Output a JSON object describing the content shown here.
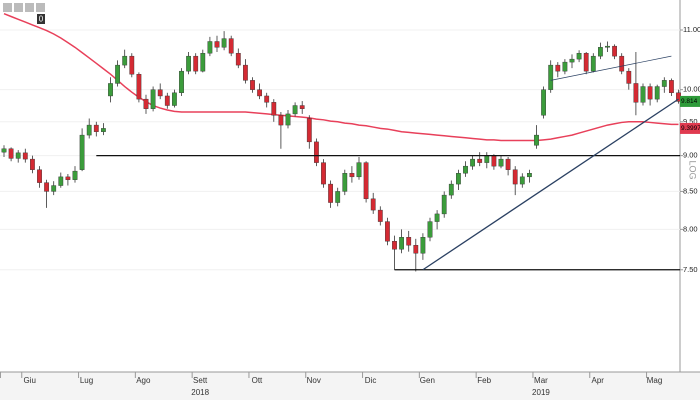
{
  "toolbar": {
    "badge": "0"
  },
  "chart_data": {
    "type": "candlestick",
    "log_scale": true,
    "scale_label": "LOG",
    "ylim": [
      6.37,
      11.54
    ],
    "yticks": [
      {
        "value": 7.5,
        "label": "7.50"
      },
      {
        "value": 8,
        "label": "8.00"
      },
      {
        "value": 8.5,
        "label": "8.50"
      },
      {
        "value": 9,
        "label": "9.00"
      },
      {
        "value": 9.5,
        "label": "9.50"
      },
      {
        "value": 10,
        "label": "10.00"
      },
      {
        "value": 11,
        "label": "11.00"
      }
    ],
    "up_color": "#3b9c3b",
    "down_color": "#d42a33",
    "ma_color": "#e8405a",
    "trend_color": "#2b4163",
    "months": [
      {
        "label": null,
        "year": null,
        "ohlc": [
          [
            9.05,
            9.15,
            8.98,
            9.1
          ],
          [
            9.1,
            9.12,
            8.92,
            8.96
          ],
          [
            8.96,
            9.08,
            8.9,
            9.04
          ]
        ]
      },
      {
        "label": "Giu",
        "year": null,
        "ohlc": [
          [
            9.04,
            9.1,
            8.9,
            8.95
          ],
          [
            8.95,
            9.0,
            8.75,
            8.8
          ],
          [
            8.8,
            8.85,
            8.55,
            8.62
          ],
          [
            8.62,
            8.66,
            8.28,
            8.5
          ],
          [
            8.5,
            8.64,
            8.45,
            8.58
          ],
          [
            8.58,
            8.76,
            8.55,
            8.7
          ],
          [
            8.7,
            8.74,
            8.58,
            8.66
          ],
          [
            8.66,
            8.85,
            8.62,
            8.78
          ]
        ]
      },
      {
        "label": "Lug",
        "year": null,
        "ohlc": [
          [
            8.8,
            9.4,
            8.78,
            9.3
          ],
          [
            9.3,
            9.55,
            9.25,
            9.45
          ],
          [
            9.45,
            9.5,
            9.28,
            9.35
          ],
          [
            9.35,
            9.48,
            9.3,
            9.4
          ],
          [
            9.9,
            10.2,
            9.8,
            10.1
          ],
          [
            10.1,
            10.48,
            10.05,
            10.4
          ],
          [
            10.4,
            10.66,
            10.35,
            10.55
          ],
          [
            10.55,
            10.6,
            10.2,
            10.25
          ]
        ]
      },
      {
        "label": "Ago",
        "year": null,
        "ohlc": [
          [
            10.25,
            10.28,
            9.8,
            9.85
          ],
          [
            9.85,
            9.92,
            9.62,
            9.7
          ],
          [
            9.7,
            10.05,
            9.66,
            10.0
          ],
          [
            10.0,
            10.1,
            9.85,
            9.9
          ],
          [
            9.9,
            9.95,
            9.7,
            9.75
          ],
          [
            9.75,
            10.0,
            9.72,
            9.95
          ],
          [
            9.95,
            10.35,
            9.9,
            10.3
          ],
          [
            10.3,
            10.62,
            10.25,
            10.55
          ]
        ]
      },
      {
        "label": "Sett",
        "year": "2018",
        "ohlc": [
          [
            10.55,
            10.6,
            10.25,
            10.3
          ],
          [
            10.3,
            10.66,
            10.28,
            10.6
          ],
          [
            10.6,
            10.88,
            10.55,
            10.8
          ],
          [
            10.8,
            10.9,
            10.62,
            10.7
          ],
          [
            10.7,
            10.98,
            10.65,
            10.85
          ],
          [
            10.85,
            10.9,
            10.55,
            10.6
          ],
          [
            10.6,
            10.68,
            10.35,
            10.4
          ],
          [
            10.4,
            10.5,
            10.1,
            10.15
          ]
        ]
      },
      {
        "label": "Ott",
        "year": null,
        "ohlc": [
          [
            10.15,
            10.2,
            9.95,
            10.0
          ],
          [
            10.0,
            10.1,
            9.85,
            9.9
          ],
          [
            9.9,
            9.95,
            9.72,
            9.8
          ],
          [
            9.8,
            9.85,
            9.5,
            9.6
          ],
          [
            9.6,
            9.65,
            9.1,
            9.45
          ],
          [
            9.45,
            9.68,
            9.4,
            9.62
          ],
          [
            9.62,
            9.8,
            9.58,
            9.75
          ],
          [
            9.75,
            9.82,
            9.62,
            9.7
          ]
        ]
      },
      {
        "label": "Nov",
        "year": null,
        "ohlc": [
          [
            9.55,
            9.6,
            9.1,
            9.2
          ],
          [
            9.2,
            9.25,
            8.85,
            8.9
          ],
          [
            8.9,
            8.95,
            8.55,
            8.6
          ],
          [
            8.6,
            8.65,
            8.28,
            8.35
          ],
          [
            8.35,
            8.55,
            8.3,
            8.5
          ],
          [
            8.5,
            8.8,
            8.45,
            8.75
          ],
          [
            8.75,
            8.85,
            8.62,
            8.7
          ],
          [
            8.7,
            8.98,
            8.66,
            8.9
          ]
        ]
      },
      {
        "label": "Dic",
        "year": null,
        "ohlc": [
          [
            8.9,
            8.92,
            8.35,
            8.4
          ],
          [
            8.4,
            8.48,
            8.2,
            8.25
          ],
          [
            8.25,
            8.3,
            8.05,
            8.1
          ],
          [
            8.1,
            8.15,
            7.8,
            7.85
          ],
          [
            7.85,
            7.92,
            7.5,
            7.75
          ],
          [
            7.75,
            8.0,
            7.7,
            7.9
          ],
          [
            7.9,
            7.98,
            7.72,
            7.8
          ],
          [
            7.8,
            7.88,
            7.48,
            7.7
          ]
        ]
      },
      {
        "label": "Gen",
        "year": null,
        "ohlc": [
          [
            7.7,
            7.95,
            7.62,
            7.9
          ],
          [
            7.9,
            8.15,
            7.85,
            8.1
          ],
          [
            8.1,
            8.25,
            8.0,
            8.2
          ],
          [
            8.2,
            8.5,
            8.15,
            8.45
          ],
          [
            8.45,
            8.65,
            8.4,
            8.6
          ],
          [
            8.6,
            8.8,
            8.52,
            8.75
          ],
          [
            8.75,
            8.92,
            8.7,
            8.85
          ],
          [
            8.85,
            9.0,
            8.8,
            8.95
          ]
        ]
      },
      {
        "label": "Feb",
        "year": null,
        "ohlc": [
          [
            8.95,
            9.05,
            8.85,
            8.9
          ],
          [
            8.9,
            9.05,
            8.82,
            9.0
          ],
          [
            9.0,
            9.02,
            8.8,
            8.85
          ],
          [
            8.85,
            9.0,
            8.82,
            8.95
          ],
          [
            8.95,
            8.98,
            8.72,
            8.8
          ],
          [
            8.8,
            8.85,
            8.45,
            8.6
          ],
          [
            8.6,
            8.75,
            8.55,
            8.7
          ],
          [
            8.7,
            8.8,
            8.62,
            8.75
          ]
        ]
      },
      {
        "label": "Mar",
        "year": "2019",
        "ohlc": [
          [
            9.15,
            9.45,
            9.1,
            9.3
          ],
          [
            9.6,
            10.05,
            9.55,
            10.0
          ],
          [
            10.0,
            10.48,
            9.95,
            10.4
          ],
          [
            10.4,
            10.45,
            10.2,
            10.3
          ],
          [
            10.3,
            10.5,
            10.25,
            10.45
          ],
          [
            10.45,
            10.58,
            10.35,
            10.5
          ],
          [
            10.5,
            10.65,
            10.45,
            10.6
          ],
          [
            10.6,
            10.62,
            10.25,
            10.3
          ]
        ]
      },
      {
        "label": "Apr",
        "year": null,
        "ohlc": [
          [
            10.3,
            10.6,
            10.28,
            10.55
          ],
          [
            10.55,
            10.78,
            10.5,
            10.7
          ],
          [
            10.7,
            10.8,
            10.62,
            10.72
          ],
          [
            10.72,
            10.75,
            10.5,
            10.55
          ],
          [
            10.55,
            10.6,
            10.25,
            10.3
          ],
          [
            10.3,
            10.35,
            10.0,
            10.1
          ],
          [
            10.1,
            10.62,
            9.6,
            9.8
          ],
          [
            9.8,
            10.1,
            9.75,
            10.05
          ]
        ]
      },
      {
        "label": "Mag",
        "year": null,
        "ohlc": [
          [
            10.05,
            10.1,
            9.75,
            9.85
          ],
          [
            9.85,
            10.08,
            9.8,
            10.05
          ],
          [
            10.05,
            10.2,
            9.95,
            10.15
          ],
          [
            10.15,
            10.18,
            9.9,
            9.95
          ],
          [
            9.95,
            10.0,
            9.78,
            9.814
          ]
        ]
      }
    ],
    "moving_average": [
      11.29,
      11.24,
      11.19,
      11.14,
      11.09,
      11.04,
      10.99,
      10.93,
      10.86,
      10.78,
      10.7,
      10.61,
      10.52,
      10.43,
      10.34,
      10.25,
      10.15,
      10.05,
      9.96,
      9.88,
      9.81,
      9.75,
      9.71,
      9.68,
      9.66,
      9.65,
      9.65,
      9.65,
      9.65,
      9.65,
      9.65,
      9.65,
      9.65,
      9.65,
      9.65,
      9.64,
      9.63,
      9.62,
      9.61,
      9.6,
      9.59,
      9.58,
      9.57,
      9.56,
      9.54,
      9.53,
      9.51,
      9.5,
      9.48,
      9.47,
      9.45,
      9.44,
      9.42,
      9.4,
      9.39,
      9.37,
      9.35,
      9.34,
      9.33,
      9.32,
      9.31,
      9.3,
      9.29,
      9.28,
      9.27,
      9.26,
      9.25,
      9.24,
      9.23,
      9.23,
      9.22,
      9.22,
      9.22,
      9.22,
      9.22,
      9.22,
      9.23,
      9.24,
      9.26,
      9.28,
      9.3,
      9.33,
      9.36,
      9.39,
      9.42,
      9.45,
      9.47,
      9.49,
      9.5,
      9.5,
      9.5,
      9.49,
      9.48,
      9.47,
      9.46,
      9.46
    ],
    "trendlines": [
      {
        "start": [
          13,
          9.0
        ],
        "end": [
          95,
          9.0
        ],
        "style": "level"
      },
      {
        "start": [
          55,
          7.5
        ],
        "end": [
          95,
          7.5
        ],
        "style": "level"
      },
      {
        "start": [
          59,
          7.5
        ],
        "end": [
          95,
          9.85
        ],
        "style": "trend"
      },
      {
        "start": [
          77,
          10.15
        ],
        "end": [
          94,
          10.55
        ],
        "style": "thin"
      }
    ],
    "price_tags": [
      {
        "value": 9.814,
        "color": "#2e9b3a"
      },
      {
        "value": 9.3997,
        "color": "#e03a4f"
      }
    ]
  }
}
